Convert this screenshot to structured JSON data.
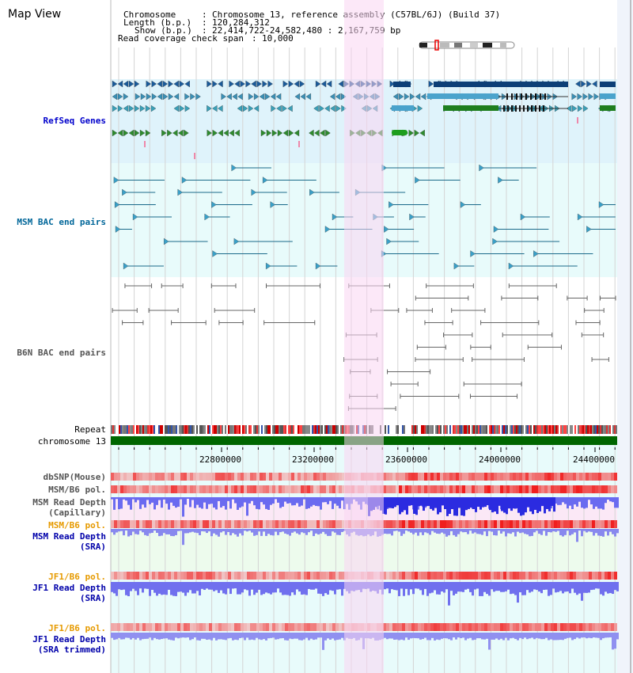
{
  "page": {
    "title": "Map View"
  },
  "header": {
    "chromosome_key": "Chromosome",
    "chromosome_value": "Chromosome 13, reference assembly (C57BL/6J) (Build 37)",
    "length_key": "Length (b.p.)",
    "length_value": "120,284,312",
    "show_key": "Show (b.p.)",
    "show_value": "22,414,722-24,582,480 : 2,167,759 bp",
    "coverage_key": "Read coverage check span",
    "coverage_value": "10,000"
  },
  "tracks": {
    "refseq": {
      "label": "RefSeq Genes"
    },
    "msm_bac": {
      "label": "MSM BAC end pairs"
    },
    "b6n_bac": {
      "label": "B6N BAC end pairs"
    },
    "repeat": {
      "label": "Repeat"
    },
    "chromosome": {
      "label": "chromosome 13"
    },
    "dbsnp": {
      "label": "dbSNP(Mouse)"
    },
    "msm_b6_pol_1": {
      "label": "MSM/B6 pol."
    },
    "msm_depth_cap": {
      "line1": "MSM Read Depth",
      "line2": "(Capillary)"
    },
    "msm_b6_pol_2": {
      "label": "MSM/B6 pol."
    },
    "msm_depth_sra": {
      "line1": "MSM Read Depth",
      "line2": "(SRA)"
    },
    "jf1_b6_pol_1": {
      "label": "JF1/B6 pol."
    },
    "jf1_depth_sra": {
      "line1": "JF1 Read Depth",
      "line2": "(SRA)"
    },
    "jf1_b6_pol_2": {
      "label": "JF1/B6 pol."
    },
    "jf1_depth_trim": {
      "line1": "JF1 Read Depth",
      "line2": "(SRA trimmed)"
    }
  },
  "ruler": {
    "ticks": [
      "22800000",
      "23200000",
      "23600000",
      "24000000",
      "24400000"
    ]
  },
  "colors": {
    "refseq_bg": "#dff3fb",
    "msm_bac_bg": "#e8fbfb",
    "highlight": "#f9d6f2",
    "refseq_label": "#0000cc",
    "msm_label": "#006699",
    "b6n_label": "#555555",
    "pol_label": "#e69a00",
    "depth_label": "#0000aa",
    "chromosome_bar": "#006600"
  }
}
